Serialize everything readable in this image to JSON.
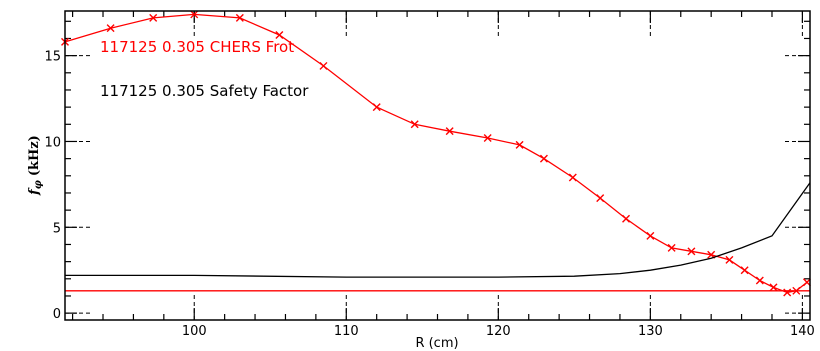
{
  "chart_data": {
    "type": "line",
    "xlabel": "R (cm)",
    "ylabel": "f_φ (kHz)",
    "ylabel_parts": {
      "main": "f",
      "sub": "φ",
      "unit": "(kHz)"
    },
    "xlim": [
      91.5,
      140.5
    ],
    "ylim": [
      -0.4,
      17.6
    ],
    "x_ticks": [
      100,
      110,
      120,
      130,
      140
    ],
    "y_ticks": [
      0,
      5,
      10,
      15
    ],
    "grid": "dashed-at-major-ticks-near-frame",
    "legend_position": "top-left",
    "series": [
      {
        "name": "117125      0.305 CHERS Frot",
        "color": "#ff0000",
        "marker": "x",
        "x": [
          91.5,
          94.5,
          97.3,
          100.0,
          103.0,
          105.6,
          108.5,
          112.0,
          114.5,
          116.8,
          119.3,
          121.4,
          123.0,
          124.9,
          126.7,
          128.4,
          130.0,
          131.4,
          132.7,
          134.0,
          135.2,
          136.2,
          137.2,
          138.1,
          139.0,
          139.6,
          140.3
        ],
        "y": [
          15.8,
          16.6,
          17.2,
          17.4,
          17.2,
          16.2,
          14.4,
          12.0,
          11.0,
          10.6,
          10.2,
          9.8,
          9.0,
          7.9,
          6.7,
          5.5,
          4.5,
          3.8,
          3.6,
          3.4,
          3.1,
          2.5,
          1.9,
          1.5,
          1.2,
          1.3,
          1.8
        ]
      },
      {
        "name": "117125      0.305 Safety Factor",
        "color": "#000000",
        "marker": "none",
        "x": [
          91.5,
          100,
          110,
          120,
          125,
          128,
          130,
          132,
          134,
          136,
          138,
          140.5
        ],
        "y": [
          2.2,
          2.2,
          2.1,
          2.1,
          2.15,
          2.3,
          2.5,
          2.8,
          3.2,
          3.8,
          4.5,
          7.6
        ]
      },
      {
        "name": "",
        "color": "#ff0000",
        "marker": "none",
        "x": [
          91.5,
          140.5
        ],
        "y": [
          1.3,
          1.3
        ]
      }
    ]
  }
}
